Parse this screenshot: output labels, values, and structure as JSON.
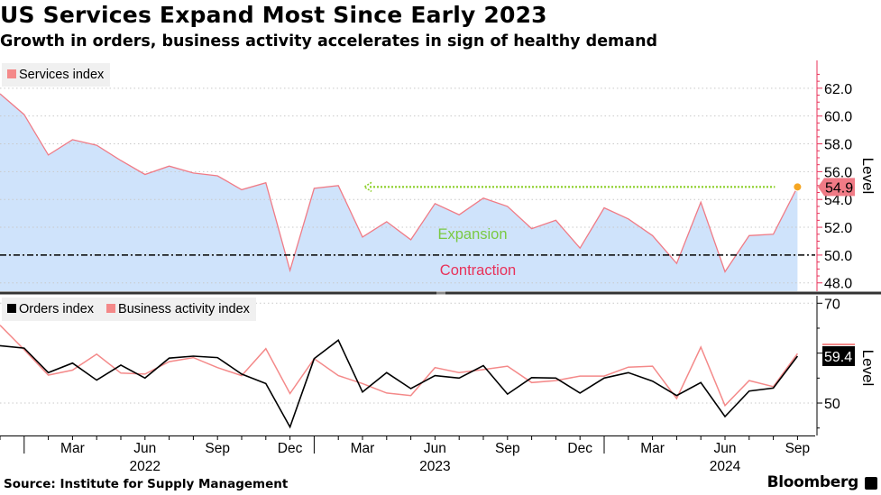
{
  "title": "US Services Expand Most Since Early 2023",
  "subtitle": "Growth in orders, business activity accelerates in sign of healthy demand",
  "source": "Source: Institute for Supply Management",
  "brand": "Bloomberg",
  "colors": {
    "services_line": "#f07b86",
    "services_fill": "#cfe3fb",
    "orders_line": "#000000",
    "activity_line": "#f48989",
    "arrow": "#8ccf28",
    "marker": "#f5a623",
    "expansion_text": "#7ac943",
    "contraction_text": "#e8325a"
  },
  "chart_data": [
    {
      "type": "area",
      "title": "",
      "legend": "top-left",
      "series": [
        {
          "name": "Services index",
          "values": [
            61.6,
            60.1,
            57.2,
            58.3,
            57.9,
            56.8,
            55.8,
            56.4,
            55.9,
            55.7,
            54.7,
            55.2,
            48.9,
            54.8,
            55.0,
            51.3,
            52.4,
            51.1,
            53.7,
            52.9,
            54.1,
            53.5,
            51.9,
            52.5,
            50.5,
            53.4,
            52.6,
            51.4,
            49.4,
            53.8,
            48.8,
            51.4,
            51.5,
            54.9
          ]
        }
      ],
      "x": [
        "2021-12",
        "2022-01",
        "2022-02",
        "2022-03",
        "2022-04",
        "2022-05",
        "2022-06",
        "2022-07",
        "2022-08",
        "2022-09",
        "2022-10",
        "2022-11",
        "2022-12",
        "2023-01",
        "2023-02",
        "2023-03",
        "2023-04",
        "2023-05",
        "2023-06",
        "2023-07",
        "2023-08",
        "2023-09",
        "2023-10",
        "2023-11",
        "2023-12",
        "2024-01",
        "2024-02",
        "2024-03",
        "2024-04",
        "2024-05",
        "2024-06",
        "2024-07",
        "2024-08",
        "2024-09"
      ],
      "ylim": [
        47.4,
        64.0
      ],
      "yticks": [
        "62.0",
        "60.0",
        "58.0",
        "56.0",
        "54.0",
        "52.0",
        "50.0",
        "48.0"
      ],
      "ylabel": "Level",
      "threshold": 50,
      "annotations": {
        "expansion": "Expansion",
        "contraction": "Contraction",
        "last_value": "54.9",
        "arrow_from": "2024-09",
        "arrow_to": "2023-03"
      }
    },
    {
      "type": "line",
      "title": "",
      "legend": "top-left",
      "series": [
        {
          "name": "Orders index",
          "values": [
            61.5,
            61.0,
            56.1,
            58.0,
            54.6,
            57.6,
            55.0,
            59.0,
            59.4,
            59.1,
            55.8,
            53.9,
            45.2,
            58.9,
            62.6,
            52.2,
            56.1,
            52.9,
            55.5,
            55.0,
            57.5,
            51.8,
            55.1,
            55.0,
            52.0,
            55.0,
            56.1,
            54.4,
            51.5,
            54.1,
            47.3,
            52.4,
            53.0,
            59.4
          ]
        },
        {
          "name": "Business activity index",
          "values": [
            65.6,
            60.7,
            55.6,
            56.6,
            59.8,
            56.0,
            55.8,
            58.3,
            59.1,
            57.1,
            55.5,
            60.9,
            51.9,
            58.9,
            55.5,
            53.9,
            52.0,
            51.5,
            57.1,
            56.1,
            56.7,
            57.4,
            54.1,
            54.5,
            55.4,
            55.4,
            57.2,
            57.4,
            50.9,
            61.2,
            49.5,
            54.5,
            53.3,
            59.9
          ]
        }
      ],
      "x": [
        "2021-12",
        "2022-01",
        "2022-02",
        "2022-03",
        "2022-04",
        "2022-05",
        "2022-06",
        "2022-07",
        "2022-08",
        "2022-09",
        "2022-10",
        "2022-11",
        "2022-12",
        "2023-01",
        "2023-02",
        "2023-03",
        "2023-04",
        "2023-05",
        "2023-06",
        "2023-07",
        "2023-08",
        "2023-09",
        "2023-10",
        "2023-11",
        "2023-12",
        "2024-01",
        "2024-02",
        "2024-03",
        "2024-04",
        "2024-05",
        "2024-06",
        "2024-07",
        "2024-08",
        "2024-09"
      ],
      "ylim": [
        43.5,
        71.5
      ],
      "yticks": [
        "70",
        "50"
      ],
      "ylabel": "Level",
      "annotations": {
        "last_value": "59.4"
      }
    }
  ],
  "x_axis": {
    "month_ticks": [
      {
        "label": "Mar",
        "month": "2022-03"
      },
      {
        "label": "Jun",
        "month": "2022-06"
      },
      {
        "label": "Sep",
        "month": "2022-09"
      },
      {
        "label": "Dec",
        "month": "2022-12"
      },
      {
        "label": "Mar",
        "month": "2023-03"
      },
      {
        "label": "Jun",
        "month": "2023-06"
      },
      {
        "label": "Sep",
        "month": "2023-09"
      },
      {
        "label": "Dec",
        "month": "2023-12"
      },
      {
        "label": "Mar",
        "month": "2024-03"
      },
      {
        "label": "Jun",
        "month": "2024-06"
      },
      {
        "label": "Sep",
        "month": "2024-09"
      }
    ],
    "year_labels": [
      {
        "label": "2022",
        "month": "2022-06"
      },
      {
        "label": "2023",
        "month": "2023-06"
      },
      {
        "label": "2024",
        "month": "2024-06"
      }
    ]
  }
}
